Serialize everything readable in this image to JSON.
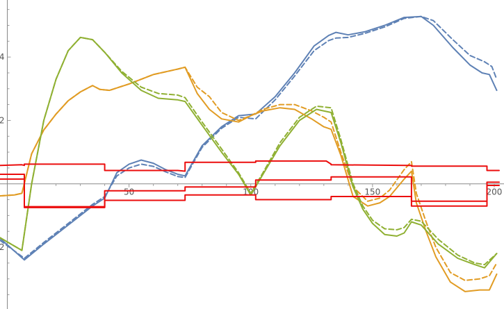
{
  "chart_data": {
    "type": "line",
    "title": "",
    "xlabel": "",
    "ylabel": "",
    "xlim": [
      -3,
      204
    ],
    "ylim": [
      -3.95,
      5.8
    ],
    "x_ticks": [
      50,
      100,
      150,
      200
    ],
    "x_tick_labels": [
      "50",
      "100",
      "150",
      "200"
    ],
    "y_ticks": [
      -2,
      2,
      4
    ],
    "y_tick_labels": [
      "−2",
      "2",
      "4"
    ],
    "legend": "none",
    "grid": false,
    "colors": {
      "blue": "#5e81b5",
      "orange": "#e19c24",
      "green": "#8fb032",
      "red": "#eb0d0d",
      "axis": "#888888",
      "tick_label": "#555555"
    },
    "series": [
      {
        "color": "#5e81b5",
        "dash": false,
        "points": [
          [
            -3,
            -1.72
          ],
          [
            7,
            -2.4
          ],
          [
            15,
            -1.9
          ],
          [
            25,
            -1.3
          ],
          [
            35,
            -0.7
          ],
          [
            40,
            -0.45
          ],
          [
            45,
            0.35
          ],
          [
            50,
            0.62
          ],
          [
            55,
            0.75
          ],
          [
            60,
            0.65
          ],
          [
            65,
            0.45
          ],
          [
            70,
            0.3
          ],
          [
            73,
            0.25
          ],
          [
            80,
            1.2
          ],
          [
            88,
            1.8
          ],
          [
            95,
            2.15
          ],
          [
            102,
            2.2
          ],
          [
            110,
            2.75
          ],
          [
            118,
            3.5
          ],
          [
            126,
            4.35
          ],
          [
            132,
            4.68
          ],
          [
            135,
            4.78
          ],
          [
            140,
            4.7
          ],
          [
            147,
            4.8
          ],
          [
            155,
            5.0
          ],
          [
            163,
            5.25
          ],
          [
            170,
            5.28
          ],
          [
            175,
            5.0
          ],
          [
            183,
            4.3
          ],
          [
            190,
            3.75
          ],
          [
            195,
            3.5
          ],
          [
            198,
            3.45
          ],
          [
            201,
            2.95
          ]
        ]
      },
      {
        "color": "#5e81b5",
        "dash": true,
        "points": [
          [
            -3,
            -1.78
          ],
          [
            7,
            -2.35
          ],
          [
            15,
            -1.85
          ],
          [
            25,
            -1.25
          ],
          [
            35,
            -0.65
          ],
          [
            40,
            -0.4
          ],
          [
            45,
            0.25
          ],
          [
            50,
            0.5
          ],
          [
            55,
            0.62
          ],
          [
            60,
            0.55
          ],
          [
            65,
            0.38
          ],
          [
            70,
            0.23
          ],
          [
            73,
            0.2
          ],
          [
            80,
            1.15
          ],
          [
            88,
            1.75
          ],
          [
            95,
            2.1
          ],
          [
            102,
            2.05
          ],
          [
            110,
            2.65
          ],
          [
            118,
            3.4
          ],
          [
            126,
            4.2
          ],
          [
            132,
            4.52
          ],
          [
            135,
            4.6
          ],
          [
            140,
            4.62
          ],
          [
            147,
            4.75
          ],
          [
            155,
            4.95
          ],
          [
            163,
            5.22
          ],
          [
            170,
            5.28
          ],
          [
            175,
            5.15
          ],
          [
            183,
            4.55
          ],
          [
            190,
            4.05
          ],
          [
            196,
            3.85
          ],
          [
            199,
            3.7
          ],
          [
            201,
            3.3
          ]
        ]
      },
      {
        "color": "#e19c24",
        "dash": false,
        "points": [
          [
            -3,
            -0.38
          ],
          [
            3,
            -0.35
          ],
          [
            6,
            -0.3
          ],
          [
            10,
            0.95
          ],
          [
            15,
            1.7
          ],
          [
            20,
            2.2
          ],
          [
            25,
            2.62
          ],
          [
            30,
            2.9
          ],
          [
            35,
            3.1
          ],
          [
            38,
            2.98
          ],
          [
            42,
            2.95
          ],
          [
            50,
            3.15
          ],
          [
            60,
            3.45
          ],
          [
            70,
            3.62
          ],
          [
            73,
            3.68
          ],
          [
            78,
            2.85
          ],
          [
            83,
            2.35
          ],
          [
            88,
            2.05
          ],
          [
            95,
            1.95
          ],
          [
            100,
            2.15
          ],
          [
            105,
            2.3
          ],
          [
            112,
            2.4
          ],
          [
            118,
            2.35
          ],
          [
            125,
            2.05
          ],
          [
            130,
            1.8
          ],
          [
            133,
            1.72
          ],
          [
            137,
            0.9
          ],
          [
            142,
            -0.4
          ],
          [
            148,
            -0.7
          ],
          [
            153,
            -0.6
          ],
          [
            157,
            -0.4
          ],
          [
            163,
            0.15
          ],
          [
            166,
            0.4
          ],
          [
            168,
            -0.6
          ],
          [
            172,
            -1.5
          ],
          [
            176,
            -2.3
          ],
          [
            182,
            -3.1
          ],
          [
            188,
            -3.4
          ],
          [
            194,
            -3.35
          ],
          [
            198,
            -3.35
          ],
          [
            201,
            -2.85
          ]
        ]
      },
      {
        "color": "#e19c24",
        "dash": true,
        "points": [
          [
            -3,
            -0.38
          ],
          [
            3,
            -0.35
          ],
          [
            6,
            -0.3
          ],
          [
            10,
            0.95
          ],
          [
            15,
            1.7
          ],
          [
            20,
            2.2
          ],
          [
            25,
            2.62
          ],
          [
            30,
            2.9
          ],
          [
            35,
            3.1
          ],
          [
            38,
            2.98
          ],
          [
            42,
            2.95
          ],
          [
            50,
            3.15
          ],
          [
            60,
            3.45
          ],
          [
            70,
            3.62
          ],
          [
            73,
            3.68
          ],
          [
            78,
            3.05
          ],
          [
            83,
            2.75
          ],
          [
            88,
            2.25
          ],
          [
            95,
            2.0
          ],
          [
            100,
            2.15
          ],
          [
            105,
            2.35
          ],
          [
            112,
            2.5
          ],
          [
            118,
            2.5
          ],
          [
            125,
            2.3
          ],
          [
            130,
            2.1
          ],
          [
            133,
            1.95
          ],
          [
            137,
            1.0
          ],
          [
            142,
            -0.1
          ],
          [
            148,
            -0.55
          ],
          [
            153,
            -0.45
          ],
          [
            157,
            -0.2
          ],
          [
            163,
            0.45
          ],
          [
            166,
            0.7
          ],
          [
            168,
            -0.3
          ],
          [
            172,
            -1.2
          ],
          [
            176,
            -2.0
          ],
          [
            182,
            -2.8
          ],
          [
            188,
            -3.05
          ],
          [
            194,
            -3.0
          ],
          [
            198,
            -2.9
          ],
          [
            201,
            -2.5
          ]
        ]
      },
      {
        "color": "#8fb032",
        "dash": false,
        "points": [
          [
            -3,
            -1.7
          ],
          [
            6,
            -2.1
          ],
          [
            10,
            0.0
          ],
          [
            15,
            2.0
          ],
          [
            20,
            3.3
          ],
          [
            25,
            4.2
          ],
          [
            30,
            4.62
          ],
          [
            35,
            4.55
          ],
          [
            40,
            4.15
          ],
          [
            47,
            3.5
          ],
          [
            55,
            2.95
          ],
          [
            62,
            2.7
          ],
          [
            70,
            2.65
          ],
          [
            73,
            2.6
          ],
          [
            80,
            1.85
          ],
          [
            88,
            1.0
          ],
          [
            95,
            0.3
          ],
          [
            100,
            -0.35
          ],
          [
            105,
            0.3
          ],
          [
            112,
            1.2
          ],
          [
            120,
            2.0
          ],
          [
            127,
            2.35
          ],
          [
            133,
            2.25
          ],
          [
            137,
            1.3
          ],
          [
            142,
            -0.1
          ],
          [
            146,
            -0.8
          ],
          [
            150,
            -1.25
          ],
          [
            155,
            -1.6
          ],
          [
            160,
            -1.65
          ],
          [
            163,
            -1.55
          ],
          [
            166,
            -1.2
          ],
          [
            170,
            -1.3
          ],
          [
            177,
            -1.9
          ],
          [
            185,
            -2.35
          ],
          [
            192,
            -2.55
          ],
          [
            196,
            -2.65
          ],
          [
            201,
            -2.2
          ]
        ]
      },
      {
        "color": "#8fb032",
        "dash": true,
        "points": [
          [
            -3,
            -1.7
          ],
          [
            6,
            -2.1
          ],
          [
            10,
            0.0
          ],
          [
            15,
            2.0
          ],
          [
            20,
            3.3
          ],
          [
            25,
            4.2
          ],
          [
            30,
            4.62
          ],
          [
            35,
            4.55
          ],
          [
            40,
            4.15
          ],
          [
            47,
            3.55
          ],
          [
            55,
            3.05
          ],
          [
            62,
            2.85
          ],
          [
            70,
            2.8
          ],
          [
            73,
            2.72
          ],
          [
            80,
            1.95
          ],
          [
            88,
            1.1
          ],
          [
            95,
            0.35
          ],
          [
            100,
            -0.3
          ],
          [
            105,
            0.35
          ],
          [
            112,
            1.3
          ],
          [
            120,
            2.1
          ],
          [
            127,
            2.45
          ],
          [
            133,
            2.4
          ],
          [
            137,
            1.4
          ],
          [
            142,
            0.0
          ],
          [
            146,
            -0.7
          ],
          [
            150,
            -1.15
          ],
          [
            155,
            -1.42
          ],
          [
            160,
            -1.45
          ],
          [
            163,
            -1.38
          ],
          [
            166,
            -1.12
          ],
          [
            170,
            -1.18
          ],
          [
            177,
            -1.75
          ],
          [
            185,
            -2.25
          ],
          [
            192,
            -2.5
          ],
          [
            196,
            -2.55
          ],
          [
            201,
            -2.2
          ]
        ]
      },
      {
        "color": "#eb0d0d",
        "dash": false,
        "points": [
          [
            -3,
            0.58
          ],
          [
            6,
            0.6
          ],
          [
            7,
            0.58
          ],
          [
            7,
            0.62
          ],
          [
            30,
            0.62
          ],
          [
            40,
            0.62
          ],
          [
            40,
            0.42
          ],
          [
            70,
            0.42
          ],
          [
            73,
            0.4
          ],
          [
            73,
            0.68
          ],
          [
            100,
            0.68
          ],
          [
            102,
            0.68
          ],
          [
            102,
            0.72
          ],
          [
            131,
            0.72
          ],
          [
            133,
            0.62
          ],
          [
            133,
            0.6
          ],
          [
            165,
            0.58
          ],
          [
            166,
            0.58
          ],
          [
            166,
            0.56
          ],
          [
            197,
            0.56
          ],
          [
            197,
            0.42
          ],
          [
            202,
            0.42
          ]
        ]
      },
      {
        "color": "#eb0d0d",
        "dash": false,
        "points": [
          [
            -3,
            0.3
          ],
          [
            6,
            0.3
          ],
          [
            7,
            0.3
          ],
          [
            7,
            -0.72
          ],
          [
            30,
            -0.72
          ],
          [
            40,
            -0.72
          ],
          [
            40,
            -0.22
          ],
          [
            70,
            -0.22
          ],
          [
            73,
            -0.22
          ],
          [
            73,
            -0.1
          ],
          [
            100,
            -0.1
          ],
          [
            102,
            -0.1
          ],
          [
            102,
            0.12
          ],
          [
            131,
            0.12
          ],
          [
            133,
            0.12
          ],
          [
            133,
            0.22
          ],
          [
            165,
            0.22
          ],
          [
            166,
            0.22
          ],
          [
            166,
            -0.55
          ],
          [
            197,
            -0.55
          ],
          [
            197,
            -0.05
          ],
          [
            202,
            -0.05
          ]
        ]
      },
      {
        "color": "#eb0d0d",
        "dash": false,
        "points": [
          [
            -3,
            0.15
          ],
          [
            6,
            0.15
          ],
          [
            7,
            0.15
          ],
          [
            7,
            -0.75
          ],
          [
            30,
            -0.75
          ],
          [
            40,
            -0.75
          ],
          [
            40,
            -0.52
          ],
          [
            70,
            -0.52
          ],
          [
            73,
            -0.52
          ],
          [
            73,
            -0.35
          ],
          [
            100,
            -0.35
          ],
          [
            102,
            -0.35
          ],
          [
            102,
            -0.5
          ],
          [
            131,
            -0.5
          ],
          [
            133,
            -0.5
          ],
          [
            133,
            -0.4
          ],
          [
            165,
            -0.4
          ],
          [
            166,
            -0.4
          ],
          [
            166,
            -0.7
          ],
          [
            197,
            -0.7
          ],
          [
            197,
            0.05
          ],
          [
            202,
            0.05
          ]
        ]
      }
    ]
  }
}
